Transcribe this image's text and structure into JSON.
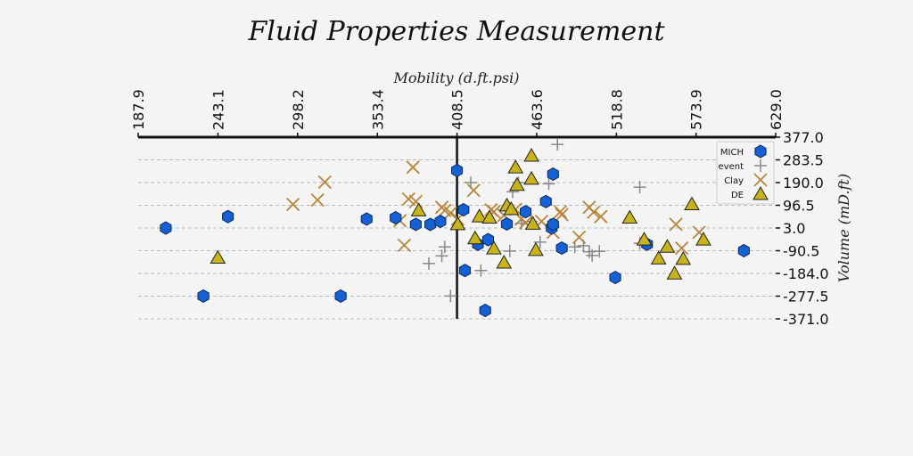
{
  "chart_data": {
    "type": "scatter",
    "title": "Fluid Properties Measurement",
    "xlabel": "Mobility (d.ft.psi)",
    "ylabel": "Volume (mD.ft)",
    "xlim": [
      187.9,
      629.0
    ],
    "ylim": [
      -371.0,
      377.0
    ],
    "xticks": [
      "187.9",
      "243.1",
      "298.2",
      "353.4",
      "408.5",
      "463.6",
      "518.8",
      "573.9",
      "629.0"
    ],
    "yticks": [
      "377.0",
      "283.5",
      "190.0",
      "96.5",
      "3.0",
      "-90.5",
      "-184.0",
      "-277.5",
      "-371.0"
    ],
    "x_axis_position": "top",
    "y_axis_position": "right",
    "crossing_line_x": 408.5,
    "grid": "horizontal dashed",
    "legend_position": "top-right",
    "series": [
      {
        "name": "MICH",
        "marker": "hexagon",
        "color": "#1560d4",
        "points": [
          [
            207,
            3
          ],
          [
            250,
            50
          ],
          [
            233,
            -277
          ],
          [
            328,
            -277
          ],
          [
            346,
            40
          ],
          [
            366,
            45
          ],
          [
            380,
            18
          ],
          [
            390,
            18
          ],
          [
            397,
            30
          ],
          [
            408.5,
            240
          ],
          [
            413,
            78
          ],
          [
            414,
            -172
          ],
          [
            423,
            -64
          ],
          [
            428,
            -336
          ],
          [
            430,
            -45
          ],
          [
            443,
            20
          ],
          [
            456,
            70
          ],
          [
            470,
            112
          ],
          [
            475,
            225
          ],
          [
            474,
            3
          ],
          [
            475,
            18
          ],
          [
            481,
            -80
          ],
          [
            518,
            -201
          ],
          [
            540,
            -64
          ],
          [
            607,
            -90
          ]
        ]
      },
      {
        "name": "event",
        "marker": "plus",
        "color": "#888888",
        "points": [
          [
            389,
            -143
          ],
          [
            398,
            -112
          ],
          [
            400,
            -75
          ],
          [
            404,
            -277
          ],
          [
            418,
            190
          ],
          [
            425,
            -172
          ],
          [
            445,
            -92
          ],
          [
            447,
            152
          ],
          [
            451,
            190
          ],
          [
            453,
            22
          ],
          [
            460,
            30
          ],
          [
            466,
            -55
          ],
          [
            472,
            185
          ],
          [
            473,
            18
          ],
          [
            478,
            347
          ],
          [
            490,
            -75
          ],
          [
            496,
            -70
          ],
          [
            500,
            -95
          ],
          [
            502,
            -110
          ],
          [
            507,
            -93
          ],
          [
            535,
            171
          ],
          [
            535,
            -60
          ]
        ]
      },
      {
        "name": "Clay",
        "marker": "x",
        "color": "#b8863b",
        "points": [
          [
            295,
            100
          ],
          [
            312,
            118
          ],
          [
            317,
            192
          ],
          [
            369,
            33
          ],
          [
            372,
            -68
          ],
          [
            375,
            122
          ],
          [
            378,
            253
          ],
          [
            380,
            112
          ],
          [
            398,
            88
          ],
          [
            400,
            75
          ],
          [
            404,
            65
          ],
          [
            409,
            40
          ],
          [
            420,
            158
          ],
          [
            432,
            78
          ],
          [
            434,
            70
          ],
          [
            441,
            55
          ],
          [
            449,
            80
          ],
          [
            453,
            40
          ],
          [
            456,
            25
          ],
          [
            467,
            30
          ],
          [
            475,
            -15
          ],
          [
            480,
            70
          ],
          [
            481,
            58
          ],
          [
            493,
            -35
          ],
          [
            503,
            68
          ],
          [
            508,
            50
          ],
          [
            500,
            88
          ],
          [
            560,
            18
          ],
          [
            564,
            -80
          ],
          [
            576,
            -15
          ]
        ]
      },
      {
        "name": "DE",
        "marker": "triangle",
        "color": "#c8b41a",
        "points": [
          [
            243,
            -120
          ],
          [
            382,
            75
          ],
          [
            409,
            18
          ],
          [
            421,
            -40
          ],
          [
            424,
            50
          ],
          [
            431,
            45
          ],
          [
            434,
            -82
          ],
          [
            441,
            -140
          ],
          [
            443,
            95
          ],
          [
            446,
            80
          ],
          [
            449,
            252
          ],
          [
            450,
            180
          ],
          [
            460,
            205
          ],
          [
            460,
            300
          ],
          [
            461,
            20
          ],
          [
            463,
            -88
          ],
          [
            528,
            45
          ],
          [
            538,
            -45
          ],
          [
            548,
            -123
          ],
          [
            554,
            -75
          ],
          [
            559,
            -185
          ],
          [
            565,
            -125
          ],
          [
            571,
            100
          ],
          [
            579,
            -45
          ]
        ]
      }
    ]
  }
}
